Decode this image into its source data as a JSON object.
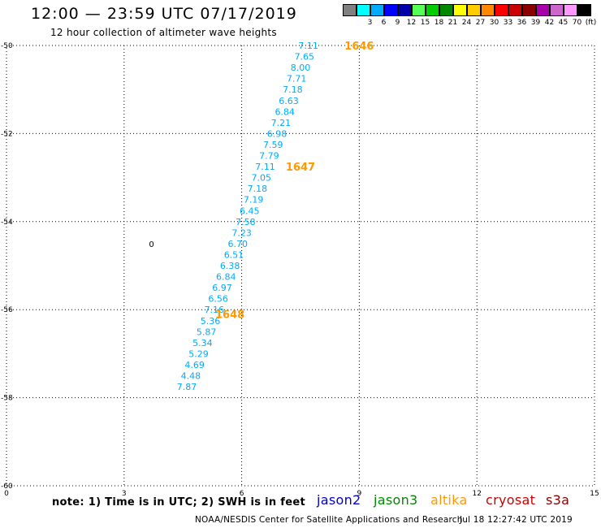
{
  "header": {
    "title": "12:00 — 23:59 UTC 07/17/2019",
    "subtitle": "12 hour collection of altimeter wave heights"
  },
  "legend": {
    "bins": [
      {
        "label": "",
        "color": "#808080"
      },
      {
        "label": "3",
        "color": "#00ffff"
      },
      {
        "label": "6",
        "color": "#00aaff"
      },
      {
        "label": "9",
        "color": "#0000ff"
      },
      {
        "label": "12",
        "color": "#0000aa"
      },
      {
        "label": "15",
        "color": "#55ff55"
      },
      {
        "label": "18",
        "color": "#00cc00"
      },
      {
        "label": "21",
        "color": "#008800"
      },
      {
        "label": "24",
        "color": "#ffff00"
      },
      {
        "label": "27",
        "color": "#ffcc00"
      },
      {
        "label": "30",
        "color": "#ff8800"
      },
      {
        "label": "33",
        "color": "#ff0000"
      },
      {
        "label": "36",
        "color": "#cc0000"
      },
      {
        "label": "39",
        "color": "#880000"
      },
      {
        "label": "42",
        "color": "#aa00aa"
      },
      {
        "label": "45",
        "color": "#cc66cc"
      },
      {
        "label": "70",
        "color": "#ff99ff"
      },
      {
        "label": "(ft)",
        "color": "#000000"
      }
    ]
  },
  "map": {
    "lon_range": [
      0,
      15
    ],
    "lat_range": [
      -60,
      -50
    ],
    "lon_ticks": [
      "0",
      "3",
      "6",
      "9",
      "12",
      "15"
    ],
    "lat_ticks": [
      "-50",
      "-52",
      "-54",
      "-56",
      "-58",
      "-60"
    ],
    "grid": "dotted",
    "track_color": "#00aaff",
    "time_color": "#ff9900",
    "wave_heights": [
      {
        "lon": 7.7,
        "lat": -50.0,
        "v": "7.11"
      },
      {
        "lon": 7.6,
        "lat": -50.25,
        "v": "7.65"
      },
      {
        "lon": 7.5,
        "lat": -50.5,
        "v": "8.00"
      },
      {
        "lon": 7.4,
        "lat": -50.75,
        "v": "7.71"
      },
      {
        "lon": 7.3,
        "lat": -51.0,
        "v": "7.18"
      },
      {
        "lon": 7.2,
        "lat": -51.25,
        "v": "6.63"
      },
      {
        "lon": 7.1,
        "lat": -51.5,
        "v": "6.84"
      },
      {
        "lon": 7.0,
        "lat": -51.75,
        "v": "7.21"
      },
      {
        "lon": 6.9,
        "lat": -52.0,
        "v": "6.98"
      },
      {
        "lon": 6.8,
        "lat": -52.25,
        "v": "7.59"
      },
      {
        "lon": 6.7,
        "lat": -52.5,
        "v": "7.79"
      },
      {
        "lon": 6.6,
        "lat": -52.75,
        "v": "7.11"
      },
      {
        "lon": 6.5,
        "lat": -53.0,
        "v": "7.05"
      },
      {
        "lon": 6.4,
        "lat": -53.25,
        "v": "7.18"
      },
      {
        "lon": 6.3,
        "lat": -53.5,
        "v": "7.19"
      },
      {
        "lon": 6.2,
        "lat": -53.75,
        "v": "6.45"
      },
      {
        "lon": 6.1,
        "lat": -54.0,
        "v": "7.58"
      },
      {
        "lon": 6.0,
        "lat": -54.25,
        "v": "7.23"
      },
      {
        "lon": 5.9,
        "lat": -54.5,
        "v": "6.70"
      },
      {
        "lon": 5.8,
        "lat": -54.75,
        "v": "6.51"
      },
      {
        "lon": 5.7,
        "lat": -55.0,
        "v": "6.38"
      },
      {
        "lon": 5.6,
        "lat": -55.25,
        "v": "6.84"
      },
      {
        "lon": 5.5,
        "lat": -55.5,
        "v": "6.97"
      },
      {
        "lon": 5.4,
        "lat": -55.75,
        "v": "6.56"
      },
      {
        "lon": 5.3,
        "lat": -56.0,
        "v": "7.16"
      },
      {
        "lon": 5.2,
        "lat": -56.25,
        "v": "5.36"
      },
      {
        "lon": 5.1,
        "lat": -56.5,
        "v": "5.87"
      },
      {
        "lon": 5.0,
        "lat": -56.75,
        "v": "5.34"
      },
      {
        "lon": 4.9,
        "lat": -57.0,
        "v": "5.29"
      },
      {
        "lon": 4.8,
        "lat": -57.25,
        "v": "4.69"
      },
      {
        "lon": 4.7,
        "lat": -57.5,
        "v": "4.48"
      },
      {
        "lon": 4.6,
        "lat": -57.75,
        "v": "7.87"
      }
    ],
    "time_labels": [
      {
        "lon": 9.0,
        "lat": -50.0,
        "v": "1646"
      },
      {
        "lon": 7.5,
        "lat": -52.75,
        "v": "1647"
      },
      {
        "lon": 5.7,
        "lat": -56.1,
        "v": "1648"
      }
    ],
    "isolated_points": [
      {
        "lon": 3.7,
        "lat": -54.5,
        "v": "0"
      }
    ]
  },
  "footer": {
    "note": "note:  1) Time is in UTC;  2) SWH is in feet",
    "satellites": [
      {
        "name": "jason2",
        "color": "#0000cc"
      },
      {
        "name": "jason3",
        "color": "#008800"
      },
      {
        "name": "altika",
        "color": "#ff9900"
      },
      {
        "name": "cryosat",
        "color": "#cc0000"
      },
      {
        "name": "s3a",
        "color": "#880000"
      }
    ],
    "credit": "NOAA/NESDIS Center for Satellite Applications and Research",
    "timestamp": "Jul 18 12:27:42 UTC 2019"
  }
}
